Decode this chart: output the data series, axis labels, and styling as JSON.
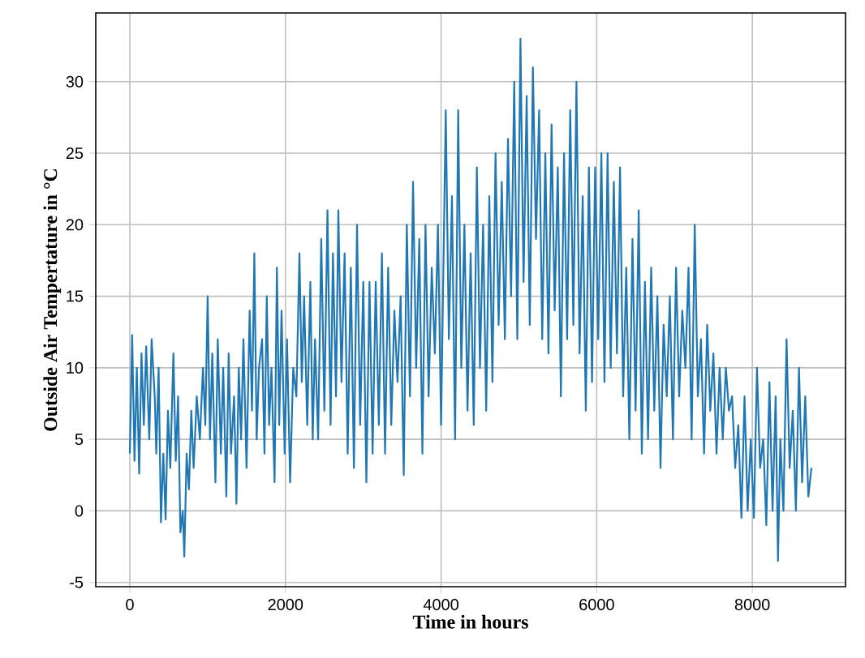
{
  "chart_data": {
    "type": "line",
    "xlabel": "Time in hours",
    "ylabel": "Outside Air Tempertature in °C",
    "xlim": [
      -438,
      9198
    ],
    "ylim": [
      -5.3,
      34.8
    ],
    "xticks": [
      0,
      2000,
      4000,
      6000,
      8000
    ],
    "yticks": [
      -5,
      0,
      5,
      10,
      15,
      20,
      25,
      30
    ],
    "grid": true,
    "marker": "none",
    "line_style": "solid",
    "series": [
      {
        "color": "#1f77b4",
        "x": [
          0,
          30,
          60,
          90,
          120,
          150,
          180,
          210,
          250,
          280,
          320,
          340,
          370,
          400,
          430,
          460,
          490,
          520,
          560,
          590,
          620,
          650,
          680,
          700,
          730,
          760,
          790,
          820,
          860,
          900,
          940,
          970,
          1000,
          1030,
          1060,
          1100,
          1130,
          1170,
          1200,
          1240,
          1270,
          1300,
          1340,
          1370,
          1400,
          1430,
          1460,
          1500,
          1540,
          1570,
          1600,
          1630,
          1660,
          1700,
          1730,
          1760,
          1790,
          1820,
          1860,
          1890,
          1920,
          1950,
          1990,
          2020,
          2060,
          2100,
          2140,
          2180,
          2210,
          2240,
          2280,
          2320,
          2350,
          2380,
          2420,
          2460,
          2500,
          2540,
          2580,
          2610,
          2650,
          2680,
          2720,
          2760,
          2800,
          2840,
          2880,
          2920,
          2960,
          3000,
          3040,
          3080,
          3120,
          3160,
          3200,
          3240,
          3280,
          3320,
          3360,
          3400,
          3440,
          3480,
          3520,
          3560,
          3600,
          3640,
          3680,
          3720,
          3760,
          3800,
          3840,
          3880,
          3920,
          3960,
          4000,
          4060,
          4100,
          4140,
          4180,
          4220,
          4260,
          4300,
          4340,
          4380,
          4420,
          4460,
          4500,
          4540,
          4580,
          4620,
          4660,
          4700,
          4740,
          4780,
          4820,
          4860,
          4900,
          4940,
          4980,
          5020,
          5060,
          5100,
          5140,
          5180,
          5220,
          5260,
          5300,
          5340,
          5380,
          5420,
          5460,
          5500,
          5540,
          5580,
          5620,
          5660,
          5700,
          5740,
          5780,
          5820,
          5860,
          5900,
          5940,
          5980,
          6020,
          6060,
          6100,
          6140,
          6180,
          6220,
          6260,
          6300,
          6340,
          6380,
          6420,
          6460,
          6500,
          6540,
          6580,
          6620,
          6660,
          6700,
          6740,
          6780,
          6820,
          6860,
          6900,
          6940,
          6980,
          7020,
          7060,
          7100,
          7140,
          7180,
          7220,
          7260,
          7300,
          7340,
          7380,
          7420,
          7460,
          7500,
          7540,
          7580,
          7620,
          7660,
          7700,
          7740,
          7780,
          7820,
          7860,
          7900,
          7940,
          7980,
          8020,
          8060,
          8100,
          8140,
          8180,
          8220,
          8260,
          8300,
          8330,
          8360,
          8400,
          8440,
          8480,
          8520,
          8560,
          8600,
          8640,
          8680,
          8720,
          8760
        ],
        "values": [
          4,
          12.3,
          3.5,
          10,
          2.6,
          11,
          6,
          11.5,
          5,
          12,
          8,
          4,
          10,
          -0.8,
          4,
          -0.6,
          7,
          3,
          11,
          3.5,
          8,
          -1.5,
          0,
          -3.2,
          4,
          1.5,
          7,
          3,
          8,
          5,
          10,
          6,
          15,
          5,
          11,
          2,
          12,
          4,
          10,
          1,
          11,
          4,
          8,
          0.5,
          10,
          5,
          12,
          3,
          14,
          7,
          18,
          5,
          10,
          12,
          4,
          15,
          6,
          10,
          2,
          17,
          6,
          14,
          4,
          12,
          2,
          10,
          8,
          18,
          9,
          15,
          6,
          16,
          5,
          12,
          5,
          19,
          7,
          21,
          6,
          18,
          8,
          21,
          9,
          18,
          4,
          17,
          3,
          20,
          6,
          16,
          2,
          16,
          4,
          16,
          6,
          18,
          4,
          17,
          6,
          14,
          9,
          15,
          2.5,
          20,
          8,
          23,
          10,
          19,
          4,
          20,
          8,
          17,
          11,
          20,
          6,
          28,
          12,
          22,
          5,
          28,
          10,
          20,
          7,
          18,
          6,
          24,
          10,
          20,
          7,
          22,
          9,
          25,
          13,
          23,
          12,
          26,
          15,
          30,
          12,
          33,
          16,
          29,
          13,
          31,
          19,
          28,
          12,
          25,
          11,
          27,
          14,
          24,
          8,
          25,
          12,
          28,
          13,
          30,
          11,
          22,
          7,
          24,
          9,
          24,
          12,
          25,
          9,
          25,
          10,
          23,
          11,
          24,
          8,
          17,
          5,
          19,
          7,
          21,
          4,
          16,
          5,
          17,
          7,
          15,
          3,
          13,
          8,
          15,
          5,
          17,
          8,
          14,
          10,
          17,
          5,
          20,
          8,
          12,
          4,
          13,
          7,
          11,
          4,
          10,
          5,
          10,
          7,
          8,
          3,
          6,
          -0.5,
          8,
          0,
          5,
          -0.5,
          10,
          3,
          5,
          -1,
          9,
          0,
          8,
          -3.5,
          5,
          0,
          12,
          3,
          7,
          0,
          10,
          2,
          8,
          1,
          3
        ]
      }
    ]
  }
}
